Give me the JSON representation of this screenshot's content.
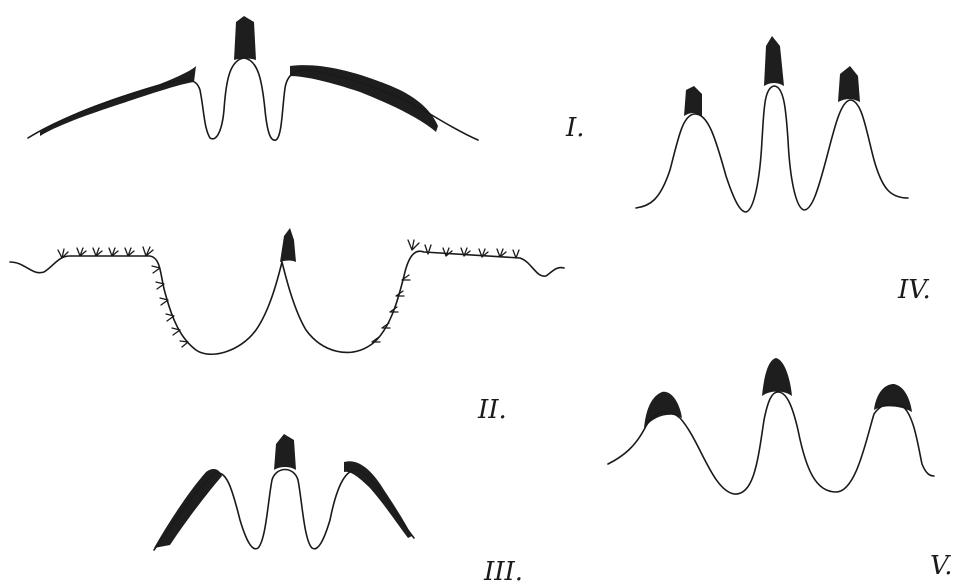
{
  "figure": {
    "labels": {
      "I": "I.",
      "II": "II.",
      "III": "III.",
      "IV": "IV.",
      "V": "V."
    },
    "colors": {
      "ink": "#1a1a1a",
      "paper": "#ffffff"
    }
  }
}
